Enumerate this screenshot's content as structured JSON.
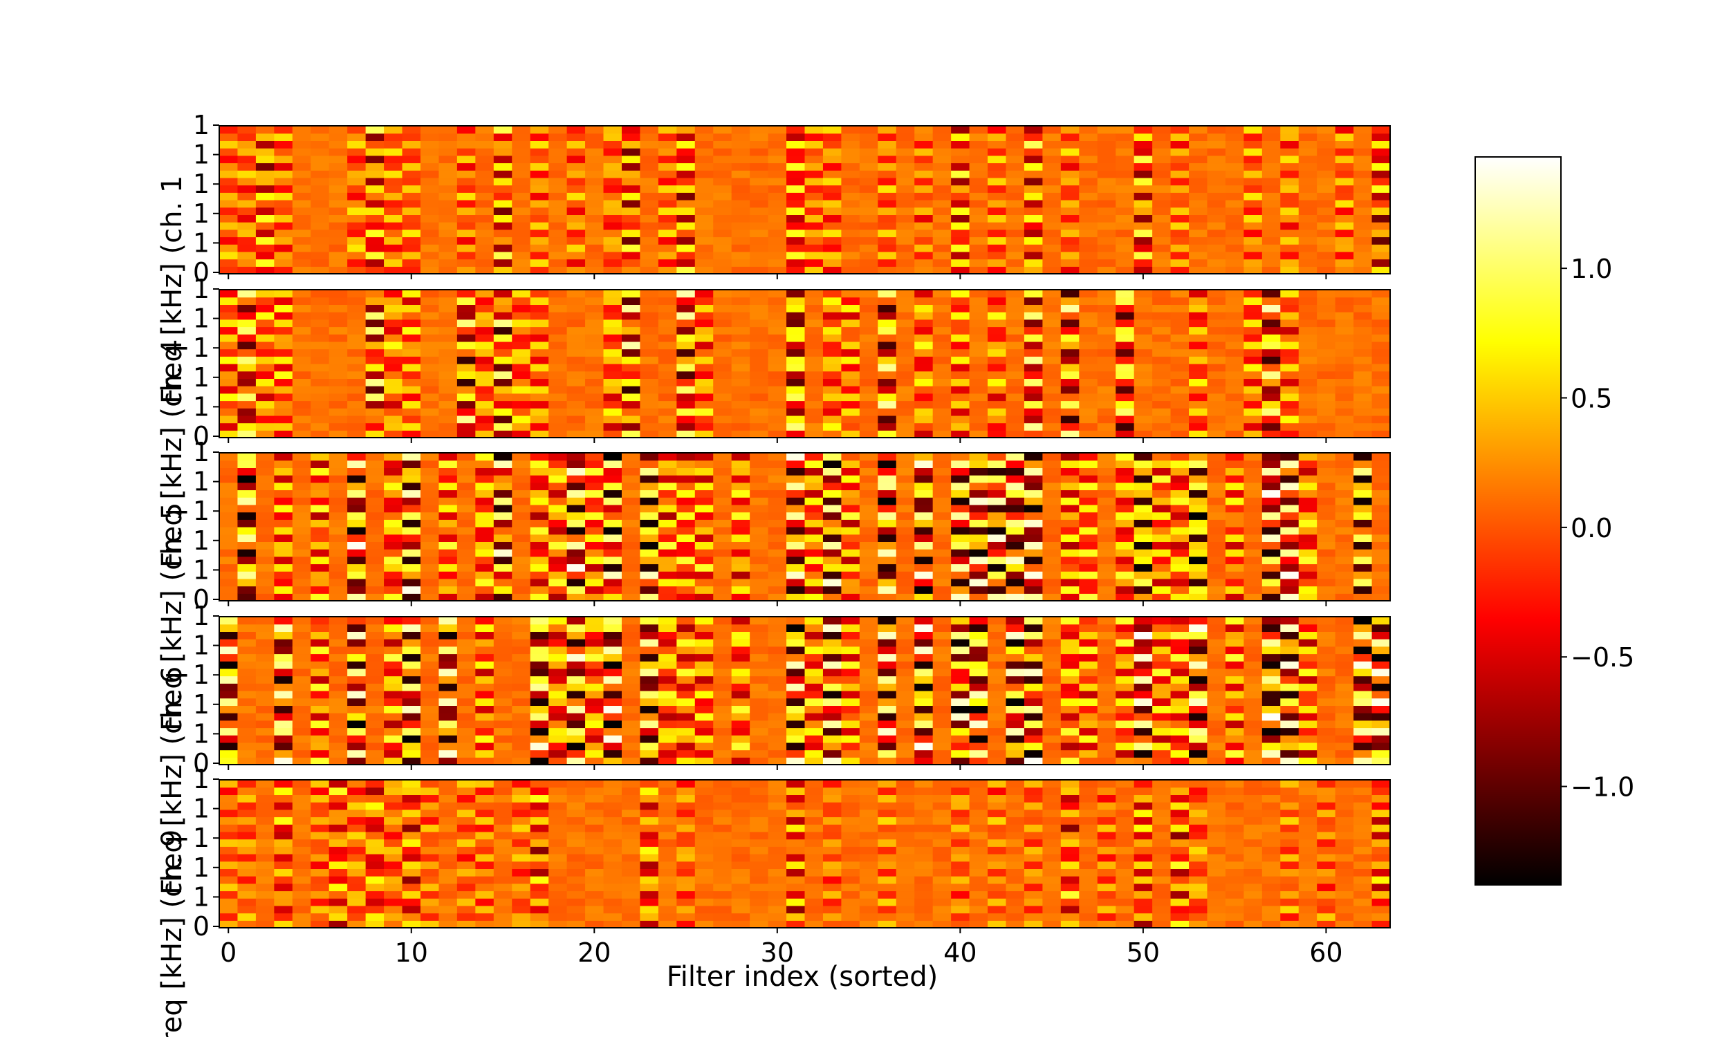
{
  "chart_data": {
    "type": "heatmap",
    "xlabel": "Filter index (sorted)",
    "x_ticks": [
      0,
      10,
      20,
      30,
      40,
      50,
      60
    ],
    "xlim": [
      -0.5,
      63.5
    ],
    "n_filters": 64,
    "n_freq_bins": 20,
    "panels": [
      {
        "ylabel": "Freq [kHz] (ch. 1",
        "y_tick_labels": [
          "0",
          "1",
          "1",
          "1",
          "1",
          "1"
        ],
        "strong_filters": [
          2,
          8,
          15,
          22,
          25,
          31,
          40,
          44,
          50,
          63
        ],
        "mid_filters": [
          0,
          1,
          3,
          7,
          9,
          10,
          13,
          17,
          19,
          21,
          24,
          32,
          33,
          36,
          38,
          42,
          46,
          52,
          56,
          58,
          61
        ],
        "amplitude": 0.55
      },
      {
        "ylabel": "Freq [kHz] (ch. 4",
        "y_tick_labels": [
          "0",
          "1",
          "1",
          "1",
          "1",
          "1"
        ],
        "strong_filters": [
          1,
          8,
          13,
          15,
          22,
          25,
          31,
          36,
          44,
          46,
          49,
          57
        ],
        "mid_filters": [
          0,
          2,
          3,
          9,
          10,
          14,
          16,
          17,
          21,
          26,
          33,
          34,
          38,
          40,
          42,
          53,
          56,
          58
        ],
        "amplitude": 0.7
      },
      {
        "ylabel": "Freq [kHz] (ch. 5",
        "y_tick_labels": [
          "0",
          "1",
          "1",
          "1",
          "1",
          "1"
        ],
        "strong_filters": [
          1,
          7,
          10,
          15,
          19,
          21,
          23,
          31,
          33,
          36,
          38,
          40,
          41,
          42,
          43,
          44,
          50,
          53,
          57,
          58,
          62
        ],
        "mid_filters": [
          3,
          5,
          9,
          12,
          14,
          17,
          18,
          20,
          24,
          25,
          26,
          28,
          32,
          34,
          46,
          47,
          49,
          51,
          52,
          55,
          59
        ],
        "amplitude": 0.85
      },
      {
        "ylabel": "Freq [kHz] (ch. 6",
        "y_tick_labels": [
          "0",
          "1",
          "1",
          "1",
          "1",
          "1"
        ],
        "strong_filters": [
          0,
          3,
          7,
          10,
          12,
          17,
          19,
          21,
          23,
          31,
          33,
          36,
          38,
          40,
          41,
          43,
          44,
          50,
          53,
          57,
          58,
          62,
          63
        ],
        "mid_filters": [
          5,
          9,
          14,
          18,
          20,
          24,
          25,
          26,
          28,
          32,
          34,
          46,
          47,
          49,
          51,
          52,
          55,
          59
        ],
        "amplitude": 0.85
      },
      {
        "ylabel": "Freq [kHz] (ch. 9",
        "y_tick_labels": [
          "0",
          "1",
          "1",
          "1",
          "1",
          "1"
        ],
        "strong_filters": [
          3,
          6,
          8,
          10,
          17,
          23,
          31,
          46,
          50,
          52,
          63
        ],
        "mid_filters": [
          0,
          1,
          5,
          7,
          9,
          11,
          13,
          14,
          16,
          25,
          33,
          36,
          40,
          42,
          44,
          48,
          53,
          58,
          60
        ],
        "amplitude": 0.45
      }
    ],
    "colorbar": {
      "colormap": "hot",
      "range": [
        -1.38,
        1.43
      ],
      "ticks": [
        1.0,
        0.5,
        0.0,
        -0.5,
        -1.0
      ],
      "tick_labels": [
        "1.0",
        "0.5",
        "0.0",
        "−0.5",
        "−1.0"
      ]
    }
  }
}
